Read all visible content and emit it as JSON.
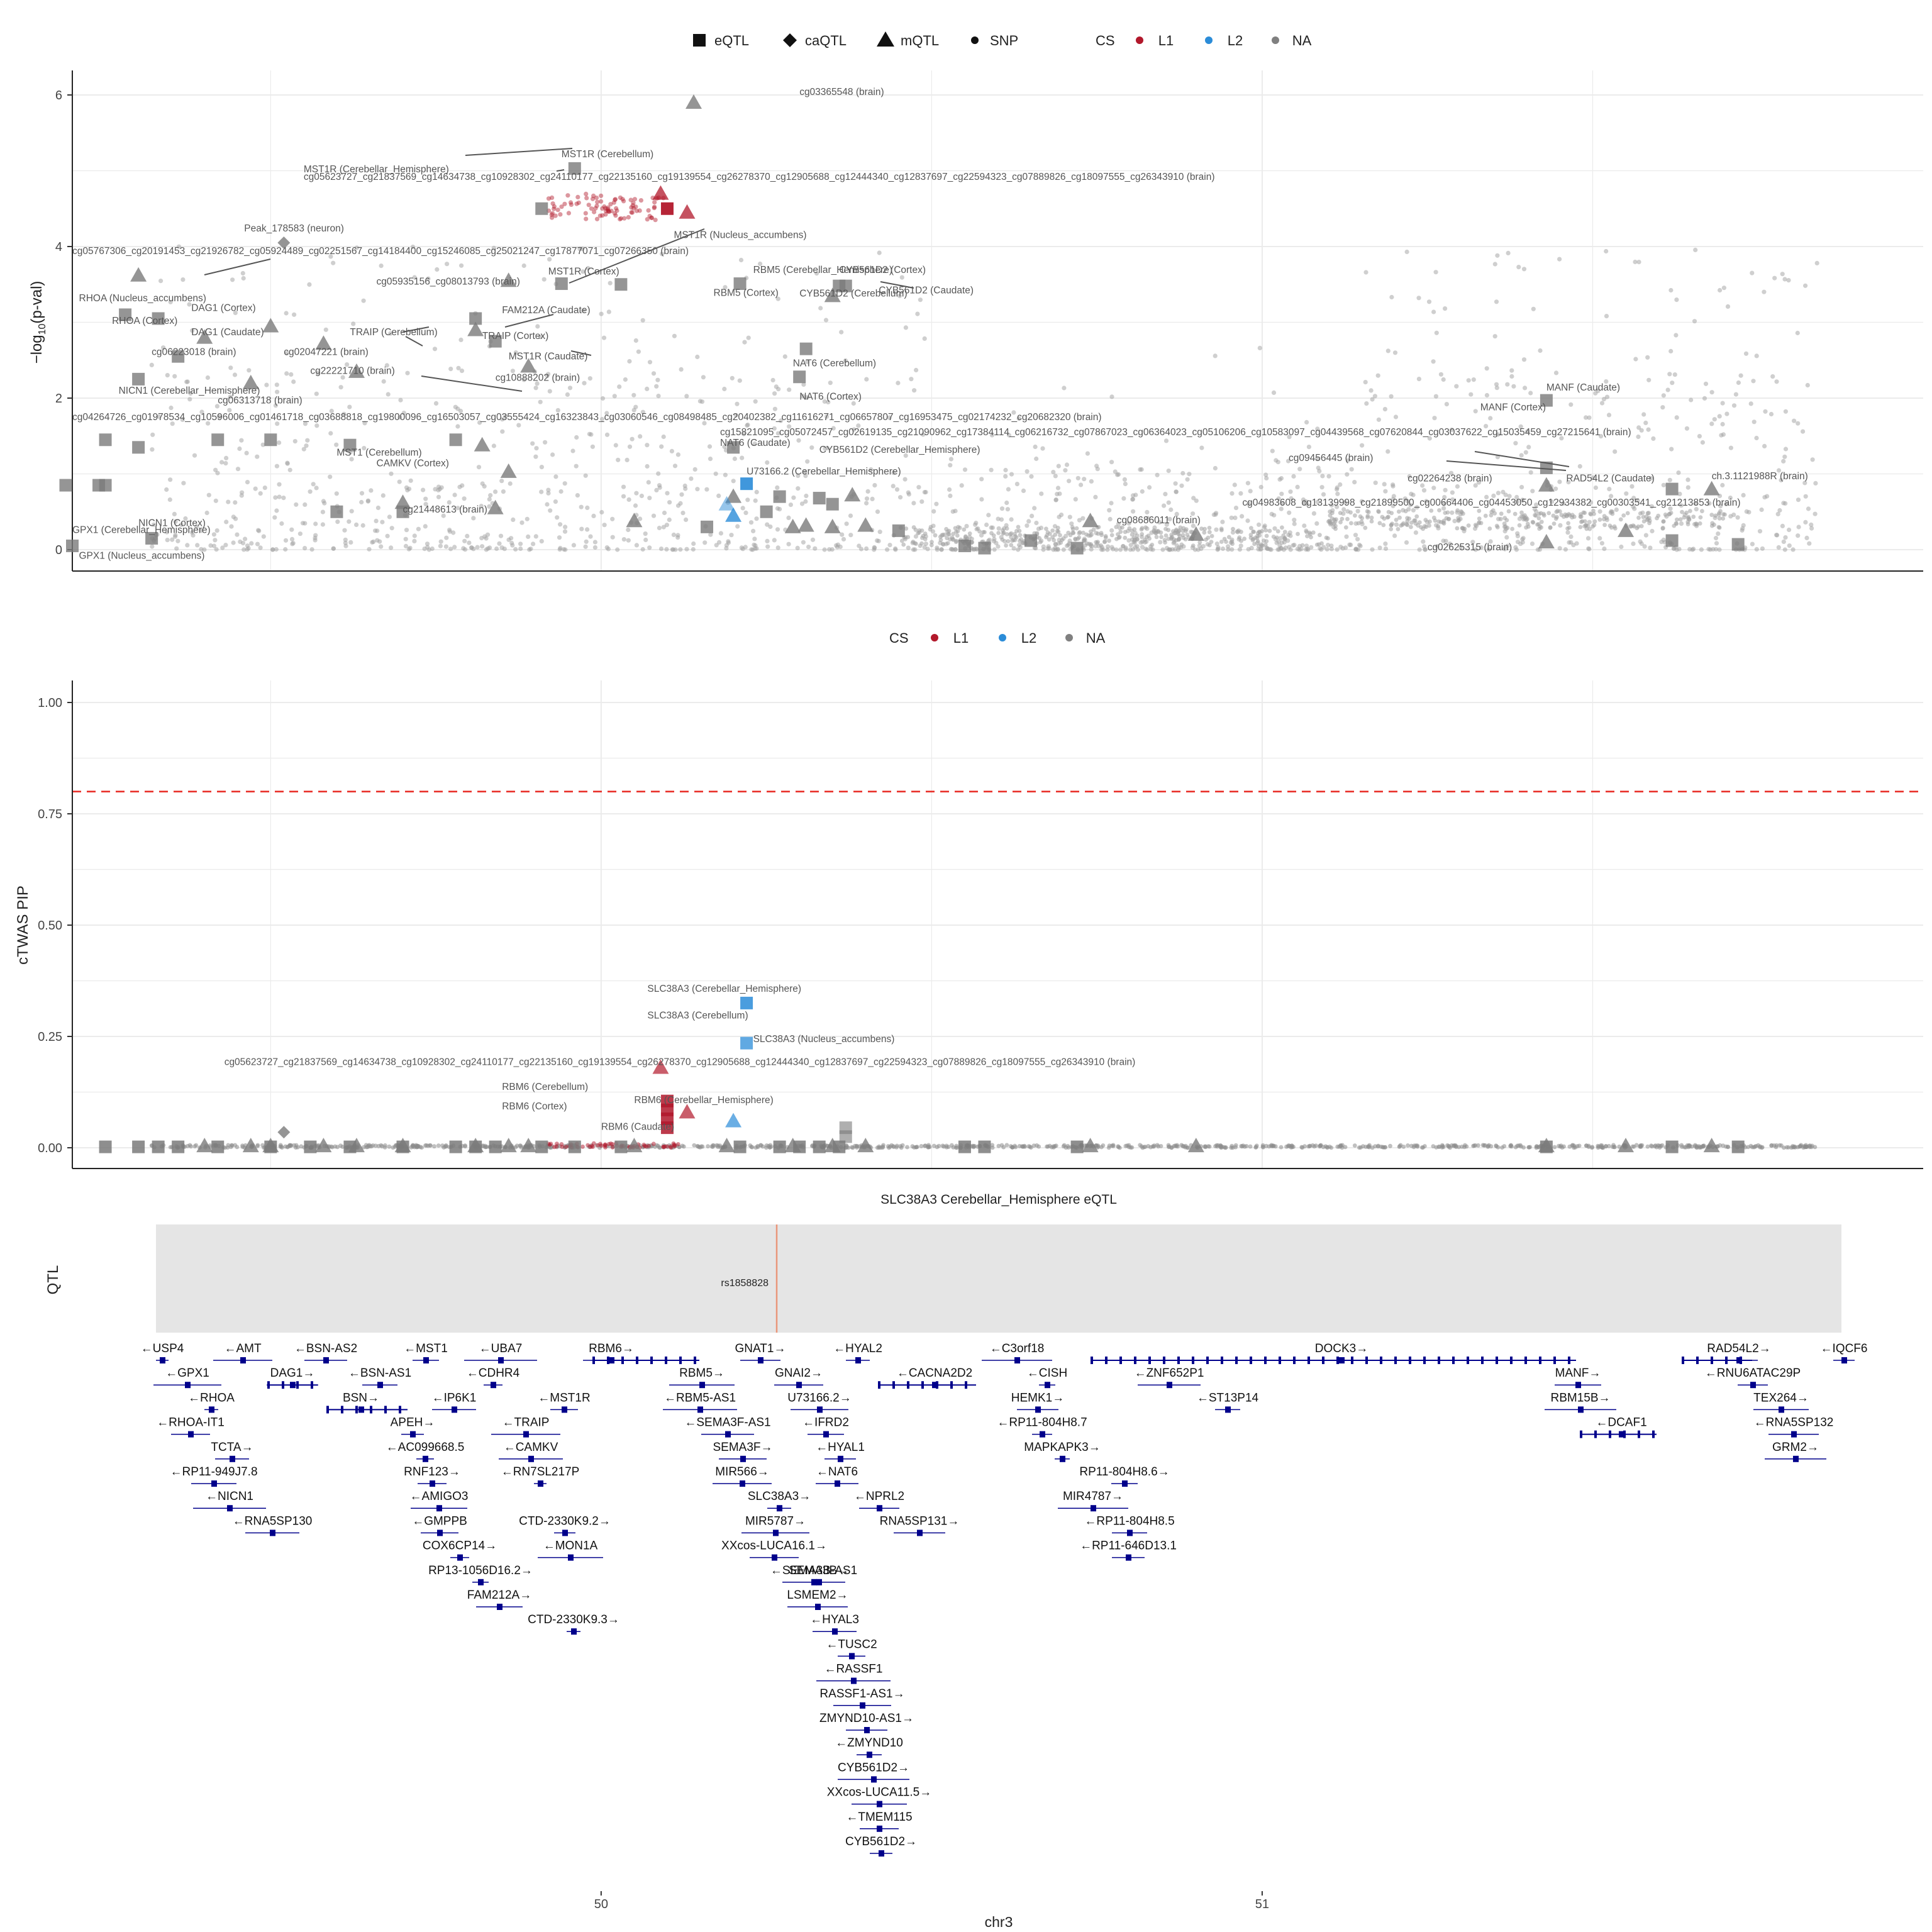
{
  "legend_top": {
    "shapes": [
      {
        "label": "eQTL",
        "icon": "square-icon"
      },
      {
        "label": "caQTL",
        "icon": "diamond-icon"
      },
      {
        "label": "mQTL",
        "icon": "triangle-icon"
      },
      {
        "label": "SNP",
        "icon": "dot-icon"
      }
    ],
    "cs_title": "CS",
    "cs": [
      {
        "label": "L1",
        "color": "#b2182b"
      },
      {
        "label": "L2",
        "color": "#2b8cd8"
      },
      {
        "label": "NA",
        "color": "#808080"
      }
    ]
  },
  "legend_mid": {
    "cs_title": "CS",
    "cs": [
      {
        "label": "L1",
        "color": "#b2182b"
      },
      {
        "label": "L2",
        "color": "#2b8cd8"
      },
      {
        "label": "NA",
        "color": "#808080"
      }
    ]
  },
  "colors": {
    "L1": "#b2182b",
    "L2": "#2b8cd8",
    "NA": "#808080",
    "gene": "#00008b",
    "threshold": "#e8261f",
    "qtl_line": "#e9967a",
    "panel_bg": "#e5e5e5"
  },
  "chart_data": [
    {
      "type": "scatter",
      "title": "",
      "xlabel": "",
      "ylabel": "−log10(p-val)",
      "xlim": [
        49.2,
        52.0
      ],
      "ylim": [
        0,
        6.2
      ],
      "yticks": [
        "0",
        "2",
        "4",
        "6"
      ],
      "grid": true,
      "labels": [
        {
          "x": 50.3,
          "y": 6.0,
          "text": "cg03365548 (brain)"
        },
        {
          "x": 49.94,
          "y": 5.18,
          "text": "MST1R (Cerebellum)"
        },
        {
          "x": 49.55,
          "y": 4.98,
          "text": "MST1R (Cerebellar_Hemisphere)"
        },
        {
          "x": 49.55,
          "y": 4.88,
          "text": "cg05623727_cg21837569_cg14634738_cg10928302_cg24110177_cg22135160_cg19139554_cg26278370_cg12905688_cg12444340_cg12837697_cg22594323_cg07889826_cg18097555_cg26343910 (brain)"
        },
        {
          "x": 49.46,
          "y": 4.2,
          "text": "Peak_178583 (neuron)"
        },
        {
          "x": 50.11,
          "y": 4.11,
          "text": "MST1R (Nucleus_accumbens)"
        },
        {
          "x": 49.2,
          "y": 3.9,
          "text": "cg05767306_cg20191453_cg21926782_cg05924489_cg02251567_cg14184400_cg15246085_cg25021247_cg17877071_cg07266350 (brain)"
        },
        {
          "x": 49.92,
          "y": 3.63,
          "text": "MST1R (Cortex)"
        },
        {
          "x": 50.23,
          "y": 3.65,
          "text": "RBM5 (Cerebellar_Hemisphere)"
        },
        {
          "x": 50.36,
          "y": 3.65,
          "text": "CYB561D2 (Cortex)"
        },
        {
          "x": 49.66,
          "y": 3.5,
          "text": "cg05935156_cg08013793 (brain)"
        },
        {
          "x": 50.17,
          "y": 3.35,
          "text": "RBM5 (Cortex)"
        },
        {
          "x": 50.3,
          "y": 3.34,
          "text": "CYB561D2 (Cerebellum)"
        },
        {
          "x": 50.42,
          "y": 3.38,
          "text": "CYB561D2 (Caudate)"
        },
        {
          "x": 49.21,
          "y": 3.28,
          "text": "RHOA (Nucleus_accumbens)"
        },
        {
          "x": 49.38,
          "y": 3.15,
          "text": "DAG1 (Cortex)"
        },
        {
          "x": 49.85,
          "y": 3.12,
          "text": "FAM212A (Caudate)"
        },
        {
          "x": 49.26,
          "y": 2.98,
          "text": "RHOA (Cortex)"
        },
        {
          "x": 49.38,
          "y": 2.83,
          "text": "DAG1 (Caudate)"
        },
        {
          "x": 49.62,
          "y": 2.83,
          "text": "TRAIP (Cerebellum)"
        },
        {
          "x": 49.82,
          "y": 2.78,
          "text": "TRAIP (Cortex)"
        },
        {
          "x": 49.32,
          "y": 2.57,
          "text": "cg06223018 (brain)"
        },
        {
          "x": 49.52,
          "y": 2.57,
          "text": "cg02047221 (brain)"
        },
        {
          "x": 49.86,
          "y": 2.51,
          "text": "MST1R (Caudate)"
        },
        {
          "x": 49.56,
          "y": 2.32,
          "text": "cg22221710 (brain)"
        },
        {
          "x": 49.84,
          "y": 2.23,
          "text": "cg10888202 (brain)"
        },
        {
          "x": 50.29,
          "y": 2.42,
          "text": "NAT6 (Cerebellum)"
        },
        {
          "x": 49.27,
          "y": 2.06,
          "text": "NICN1 (Cerebellar_Hemisphere)"
        },
        {
          "x": 49.42,
          "y": 1.93,
          "text": "cg06313718 (brain)"
        },
        {
          "x": 50.3,
          "y": 1.98,
          "text": "NAT6 (Cortex)"
        },
        {
          "x": 49.2,
          "y": 1.71,
          "text": "cg04264726_cg01978534_cg10596006_cg01461718_cg03688818_cg19800096_cg16503057_cg03555424_cg16323843_cg03060546_cg08498485_cg20402382_cg11616271_cg06657807_cg16953475_cg02174232_cg20682320 (brain)"
        },
        {
          "x": 50.18,
          "y": 1.51,
          "text": "cg15821095_cg05072457_cg02619135_cg21090962_cg17384114_cg06216732_cg07867023_cg06364023_cg05106206_cg10583097_cg04439568_cg07620844_cg03037622_cg15035459_cg27215641 (brain)"
        },
        {
          "x": 50.18,
          "y": 1.37,
          "text": "NAT6 (Caudate)"
        },
        {
          "x": 50.33,
          "y": 1.28,
          "text": "CYB561D2 (Cerebellar_Hemisphere)"
        },
        {
          "x": 51.43,
          "y": 2.1,
          "text": "MANF (Caudate)"
        },
        {
          "x": 51.33,
          "y": 1.84,
          "text": "MANF (Cortex)"
        },
        {
          "x": 49.6,
          "y": 1.24,
          "text": "MST1 (Cerebellum)"
        },
        {
          "x": 49.66,
          "y": 1.1,
          "text": "CAMKV (Cortex)"
        },
        {
          "x": 50.22,
          "y": 0.99,
          "text": "U73166.2 (Cerebellar_Hemisphere)"
        },
        {
          "x": 51.04,
          "y": 1.17,
          "text": "cg09456445 (brain)"
        },
        {
          "x": 51.22,
          "y": 0.9,
          "text": "cg02264238 (brain)"
        },
        {
          "x": 51.46,
          "y": 0.9,
          "text": "RAD54L2 (Caudate)"
        },
        {
          "x": 51.68,
          "y": 0.93,
          "text": "ch.3.1121988R (brain)"
        },
        {
          "x": 50.97,
          "y": 0.58,
          "text": "cg04983608_cg13139998_cg21899500_cg00664406_cg04453050_cg12934382_cg00303541_cg21213853 (brain)"
        },
        {
          "x": 49.7,
          "y": 0.49,
          "text": "cg21448613 (brain)"
        },
        {
          "x": 49.2,
          "y": 0.22,
          "text": "GPX1 (Cerebellar_Hemisphere)"
        },
        {
          "x": 49.3,
          "y": 0.31,
          "text": "NICN1 (Cortex)"
        },
        {
          "x": 50.78,
          "y": 0.35,
          "text": "cg08686011 (brain)"
        },
        {
          "x": 49.21,
          "y": -0.12,
          "text": "GPX1 (Nucleus_accumbens)"
        },
        {
          "x": 51.25,
          "y": -0.01,
          "text": "cg02625315 (brain)"
        }
      ]
    },
    {
      "type": "scatter",
      "title": "",
      "xlabel": "",
      "ylabel": "cTWAS PIP",
      "xlim": [
        49.2,
        52.0
      ],
      "ylim": [
        -0.04,
        1.06
      ],
      "yticks": [
        "0.00",
        "0.25",
        "0.50",
        "0.75",
        "1.00"
      ],
      "threshold": 0.8,
      "grid": true,
      "labels": [
        {
          "x": 50.07,
          "y": 0.35,
          "text": "SLC38A3 (Cerebellar_Hemisphere)"
        },
        {
          "x": 50.07,
          "y": 0.29,
          "text": "SLC38A3 (Cerebellum)"
        },
        {
          "x": 50.23,
          "y": 0.237,
          "text": "SLC38A3 (Nucleus_accumbens)"
        },
        {
          "x": 49.43,
          "y": 0.186,
          "text": "cg05623727_cg21837569_cg14634738_cg10928302_cg24110177_cg22135160_cg19139554_cg26278370_cg12905688_cg12444340_cg12837697_cg22594323_cg07889826_cg18097555_cg26343910 (brain)"
        },
        {
          "x": 49.85,
          "y": 0.13,
          "text": "RBM6 (Cerebellum)"
        },
        {
          "x": 50.05,
          "y": 0.1,
          "text": "RBM6 (Cerebellar_Hemisphere)"
        },
        {
          "x": 49.85,
          "y": 0.086,
          "text": "RBM6 (Cortex)"
        },
        {
          "x": 50.0,
          "y": 0.04,
          "text": "RBM6 (Caudate)"
        }
      ]
    },
    {
      "type": "table",
      "title": "SLC38A3 Cerebellar_Hemisphere eQTL",
      "ylabel": "QTL",
      "xlabel": "chr3",
      "xticks": [
        "50",
        "51"
      ],
      "snp": "rs1858828",
      "genes": [
        "←USP4",
        "←AMT",
        "←BSN-AS2",
        "←MST1",
        "←UBA7",
        "RBM6→",
        "GNAT1→",
        "←HYAL2",
        "←C3orf18",
        "DOCK3→",
        "RAD54L2→",
        "←IQCF6",
        "←GPX1",
        "DAG1→",
        "←BSN-AS1",
        "←CDHR4",
        "RBM5→",
        "GNAI2→",
        "←CACNA2D2",
        "←CISH",
        "←ZNF652P1",
        "MANF→",
        "←RNU6ATAC29P",
        "←RHOA",
        "BSN→",
        "←IP6K1",
        "←MST1R",
        "←RBM5-AS1",
        "U73166.2→",
        "HEMK1→",
        "←ST13P14",
        "RBM15B→",
        "TEX264→",
        "←RHOA-IT1",
        "APEH→",
        "←TRAIP",
        "←SEMA3F-AS1",
        "←IFRD2",
        "←RP11-804H8.7",
        "←DCAF1",
        "←RNA5SP132",
        "TCTA→",
        "←AC099668.5",
        "←CAMKV",
        "SEMA3F→",
        "←HYAL1",
        "MAPKAPK3→",
        "GRM2→",
        "←RP11-949J7.8",
        "RNF123→",
        "←RN7SL217P",
        "MIR566→",
        "←NAT6",
        "RP11-804H8.6→",
        "←NICN1",
        "←AMIGO3",
        "←NPRL2",
        "SLC38A3→",
        "MIR4787→",
        "←RNA5SP130",
        "←GMPPB",
        "CTD-2330K9.2→",
        "MIR5787→",
        "RNA5SP131→",
        "←RP11-804H8.5",
        "COX6CP14→",
        "←MON1A",
        "XXcos-LUCA16.1→",
        "←RP11-646D13.1",
        "RP13-1056D16.2→",
        "←SEMA3B-AS1",
        "FAM212A→",
        "SEMA3B→",
        "CTD-2330K9.3→",
        "LSMEM2→",
        "←HYAL3",
        "←TUSC2",
        "←RASSF1",
        "RASSF1-AS1→",
        "ZMYND10-AS1→",
        "←ZMYND10",
        "CYB561D2→",
        "XXcos-LUCA11.5→",
        "←TMEM115",
        "CYB561D2→"
      ]
    }
  ]
}
